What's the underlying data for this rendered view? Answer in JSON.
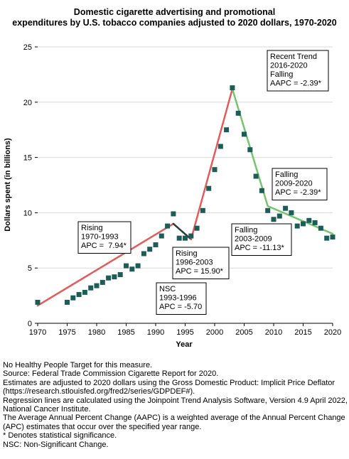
{
  "chart_data": {
    "type": "scatter",
    "title_lines": [
      "Domestic cigarette advertising and promotional",
      "expenditures by U.S. tobacco companies adjusted to 2020 dollars, 1970-2020"
    ],
    "xlabel": "Year",
    "ylabel": "Dollars spent (in billions)",
    "xlim": [
      1970,
      2020
    ],
    "ylim": [
      0,
      25
    ],
    "xticks": [
      1970,
      1975,
      1980,
      1985,
      1990,
      1995,
      2000,
      2005,
      2010,
      2015,
      2020
    ],
    "yticks": [
      0,
      5,
      10,
      15,
      20,
      25
    ],
    "grid": "horizontal",
    "point_color": "#1e5c57",
    "observed": {
      "x": [
        1970,
        1975,
        1976,
        1977,
        1978,
        1979,
        1980,
        1981,
        1982,
        1983,
        1984,
        1985,
        1986,
        1987,
        1988,
        1989,
        1990,
        1991,
        1992,
        1993,
        1994,
        1995,
        1996,
        1997,
        1998,
        1999,
        2000,
        2001,
        2002,
        2003,
        2004,
        2005,
        2006,
        2007,
        2008,
        2009,
        2010,
        2011,
        2012,
        2013,
        2014,
        2015,
        2016,
        2017,
        2018,
        2019,
        2020
      ],
      "y": [
        1.9,
        1.9,
        2.3,
        2.6,
        2.8,
        3.2,
        3.4,
        3.7,
        4.1,
        4.2,
        4.4,
        5.2,
        4.9,
        5.2,
        6.3,
        6.7,
        7.1,
        7.9,
        8.8,
        9.9,
        7.7,
        7.7,
        7.9,
        8.6,
        10.2,
        12.2,
        13.9,
        16.0,
        17.5,
        21.3,
        19.0,
        17.1,
        15.7,
        13.3,
        12.0,
        10.2,
        9.4,
        9.7,
        10.4,
        10.0,
        8.8,
        9.0,
        9.3,
        9.1,
        8.6,
        7.7,
        7.8
      ]
    },
    "segments": [
      {
        "x": [
          1970,
          1993
        ],
        "y": [
          1.6,
          9.0
        ],
        "apc": 7.94,
        "color": "#e15c5c"
      },
      {
        "x": [
          1993,
          1996
        ],
        "y": [
          9.0,
          7.6
        ],
        "apc": -5.7,
        "color": "#2e3b3b"
      },
      {
        "x": [
          1996,
          2003
        ],
        "y": [
          7.6,
          21.2
        ],
        "apc": 15.9,
        "color": "#e15c5c"
      },
      {
        "x": [
          2003,
          2009
        ],
        "y": [
          21.2,
          10.6
        ],
        "apc": -11.13,
        "color": "#77c46f"
      },
      {
        "x": [
          2009,
          2020
        ],
        "y": [
          10.6,
          8.1
        ],
        "apc": -2.39,
        "color": "#77c46f"
      }
    ],
    "annotations": [
      {
        "lines": [
          "Rising",
          "1970-1993",
          "APC =  7.94*"
        ]
      },
      {
        "lines": [
          "NSC",
          "1993-1996",
          "APC = -5.70"
        ]
      },
      {
        "lines": [
          "Rising",
          "1996-2003",
          "APC = 15.90*"
        ]
      },
      {
        "lines": [
          "Falling",
          "2003-2009",
          "APC = -11.13*"
        ]
      },
      {
        "lines": [
          "Falling",
          "2009-2020",
          "APC = -2.39*"
        ]
      },
      {
        "lines": [
          "Recent Trend",
          "2016-2020",
          "Falling",
          "AAPC = -2.39*"
        ]
      }
    ]
  },
  "notes": [
    "No Healthy People Target for this measure.",
    "Source: Federal Trade Commission Cigarette Report for 2020.",
    "Estimates are adjusted to 2020 dollars using the Gross Domestic Product: Implicit Price Deflator (https://research.stlouisfed.org/fred2/series/GDPDEF#).",
    "Regression lines are calculated using the Joinpoint Trend Analysis Software, Version 4.9 April 2022, National Cancer Institute.",
    "The Average Annual Percent Change (AAPC) is a weighted average of the Annual Percent Change (APC) estimates that occur over the specified year range.",
    "* Denotes statistical significance.",
    "NSC: Non-Significant Change."
  ]
}
